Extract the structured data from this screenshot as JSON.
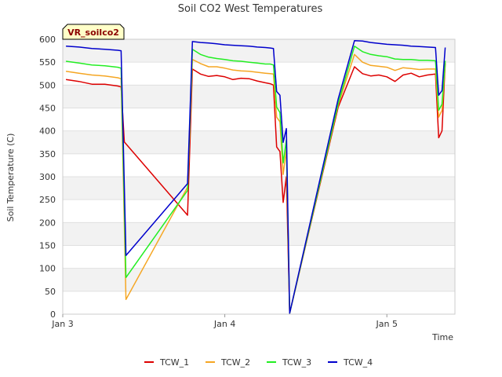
{
  "chart_data": {
    "type": "line",
    "title": "Soil CO2 West Temperatures",
    "badge": "VR_soilco2",
    "xlabel": "Time",
    "ylabel": "Soil Temperature (C)",
    "ylim": [
      0,
      600
    ],
    "yticks": [
      0,
      50,
      100,
      150,
      200,
      250,
      300,
      350,
      400,
      450,
      500,
      550,
      600
    ],
    "xlim": [
      0,
      2.42
    ],
    "xticks": [
      {
        "value": 0,
        "label": "Jan 3"
      },
      {
        "value": 1,
        "label": "Jan 4"
      },
      {
        "value": 2,
        "label": "Jan 5"
      }
    ],
    "grid": true,
    "legend_position": "bottom",
    "series": [
      {
        "name": "TCW_1",
        "color": "#dd0000",
        "points": [
          [
            0.02,
            512
          ],
          [
            0.1,
            508
          ],
          [
            0.18,
            502
          ],
          [
            0.26,
            502
          ],
          [
            0.34,
            498
          ],
          [
            0.36,
            496
          ],
          [
            0.38,
            376
          ],
          [
            0.77,
            216
          ],
          [
            0.8,
            535
          ],
          [
            0.85,
            524
          ],
          [
            0.9,
            519
          ],
          [
            0.95,
            521
          ],
          [
            1.0,
            518
          ],
          [
            1.05,
            512
          ],
          [
            1.1,
            515
          ],
          [
            1.15,
            514
          ],
          [
            1.2,
            509
          ],
          [
            1.25,
            505
          ],
          [
            1.28,
            503
          ],
          [
            1.3,
            500
          ],
          [
            1.32,
            365
          ],
          [
            1.34,
            355
          ],
          [
            1.36,
            244
          ],
          [
            1.38,
            300
          ],
          [
            1.4,
            2
          ],
          [
            1.7,
            452
          ],
          [
            1.8,
            540
          ],
          [
            1.85,
            525
          ],
          [
            1.9,
            520
          ],
          [
            1.95,
            522
          ],
          [
            2.0,
            518
          ],
          [
            2.05,
            508
          ],
          [
            2.1,
            522
          ],
          [
            2.15,
            526
          ],
          [
            2.2,
            518
          ],
          [
            2.25,
            522
          ],
          [
            2.3,
            524
          ],
          [
            2.32,
            385
          ],
          [
            2.34,
            400
          ],
          [
            2.36,
            548
          ]
        ]
      },
      {
        "name": "TCW_2",
        "color": "#f5a623",
        "points": [
          [
            0.02,
            530
          ],
          [
            0.1,
            526
          ],
          [
            0.18,
            522
          ],
          [
            0.26,
            520
          ],
          [
            0.34,
            516
          ],
          [
            0.36,
            514
          ],
          [
            0.39,
            32
          ],
          [
            0.77,
            277
          ],
          [
            0.8,
            556
          ],
          [
            0.85,
            547
          ],
          [
            0.9,
            540
          ],
          [
            0.95,
            540
          ],
          [
            1.0,
            537
          ],
          [
            1.05,
            533
          ],
          [
            1.1,
            531
          ],
          [
            1.15,
            530
          ],
          [
            1.2,
            528
          ],
          [
            1.25,
            526
          ],
          [
            1.28,
            525
          ],
          [
            1.3,
            524
          ],
          [
            1.32,
            430
          ],
          [
            1.34,
            420
          ],
          [
            1.36,
            305
          ],
          [
            1.38,
            360
          ],
          [
            1.4,
            2
          ],
          [
            1.7,
            457
          ],
          [
            1.8,
            567
          ],
          [
            1.85,
            550
          ],
          [
            1.9,
            543
          ],
          [
            1.95,
            541
          ],
          [
            2.0,
            539
          ],
          [
            2.05,
            532
          ],
          [
            2.1,
            538
          ],
          [
            2.15,
            536
          ],
          [
            2.2,
            534
          ],
          [
            2.25,
            535
          ],
          [
            2.3,
            535
          ],
          [
            2.32,
            430
          ],
          [
            2.34,
            445
          ],
          [
            2.36,
            547
          ]
        ]
      },
      {
        "name": "TCW_3",
        "color": "#22ee22",
        "points": [
          [
            0.02,
            552
          ],
          [
            0.1,
            548
          ],
          [
            0.18,
            544
          ],
          [
            0.26,
            542
          ],
          [
            0.34,
            539
          ],
          [
            0.36,
            537
          ],
          [
            0.39,
            80
          ],
          [
            0.77,
            270
          ],
          [
            0.8,
            578
          ],
          [
            0.85,
            567
          ],
          [
            0.9,
            561
          ],
          [
            0.95,
            558
          ],
          [
            1.0,
            556
          ],
          [
            1.05,
            553
          ],
          [
            1.1,
            552
          ],
          [
            1.15,
            550
          ],
          [
            1.2,
            548
          ],
          [
            1.25,
            546
          ],
          [
            1.28,
            546
          ],
          [
            1.3,
            544
          ],
          [
            1.32,
            452
          ],
          [
            1.34,
            440
          ],
          [
            1.36,
            330
          ],
          [
            1.38,
            380
          ],
          [
            1.4,
            2
          ],
          [
            1.7,
            460
          ],
          [
            1.8,
            585
          ],
          [
            1.85,
            573
          ],
          [
            1.9,
            567
          ],
          [
            1.95,
            564
          ],
          [
            2.0,
            562
          ],
          [
            2.05,
            557
          ],
          [
            2.1,
            556
          ],
          [
            2.15,
            556
          ],
          [
            2.2,
            554
          ],
          [
            2.25,
            554
          ],
          [
            2.3,
            553
          ],
          [
            2.32,
            445
          ],
          [
            2.34,
            458
          ],
          [
            2.36,
            553
          ]
        ]
      },
      {
        "name": "TCW_4",
        "color": "#0000cc",
        "points": [
          [
            0.02,
            585
          ],
          [
            0.1,
            583
          ],
          [
            0.18,
            580
          ],
          [
            0.26,
            578
          ],
          [
            0.34,
            576
          ],
          [
            0.36,
            575
          ],
          [
            0.39,
            128
          ],
          [
            0.77,
            285
          ],
          [
            0.8,
            595
          ],
          [
            0.85,
            593
          ],
          [
            0.9,
            592
          ],
          [
            0.95,
            590
          ],
          [
            1.0,
            588
          ],
          [
            1.05,
            587
          ],
          [
            1.1,
            586
          ],
          [
            1.15,
            585
          ],
          [
            1.2,
            583
          ],
          [
            1.25,
            582
          ],
          [
            1.28,
            581
          ],
          [
            1.3,
            580
          ],
          [
            1.32,
            486
          ],
          [
            1.34,
            478
          ],
          [
            1.36,
            375
          ],
          [
            1.38,
            405
          ],
          [
            1.4,
            2
          ],
          [
            1.7,
            470
          ],
          [
            1.8,
            597
          ],
          [
            1.85,
            596
          ],
          [
            1.9,
            593
          ],
          [
            1.95,
            591
          ],
          [
            2.0,
            589
          ],
          [
            2.05,
            588
          ],
          [
            2.1,
            587
          ],
          [
            2.15,
            585
          ],
          [
            2.2,
            584
          ],
          [
            2.25,
            583
          ],
          [
            2.3,
            582
          ],
          [
            2.32,
            478
          ],
          [
            2.34,
            488
          ],
          [
            2.36,
            582
          ]
        ]
      }
    ]
  }
}
